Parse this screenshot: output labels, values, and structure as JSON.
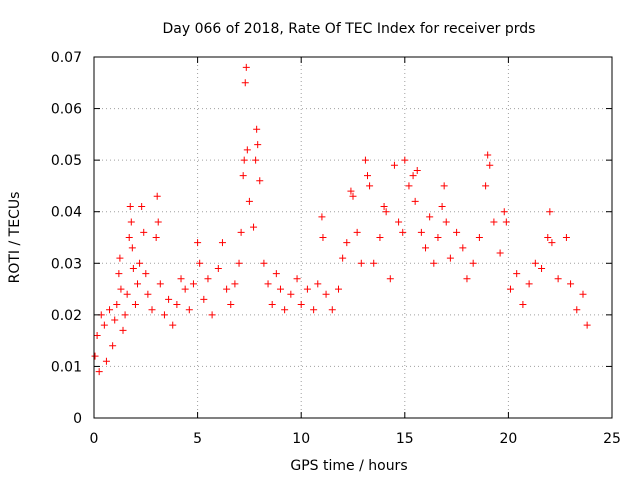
{
  "chart_data": {
    "type": "scatter",
    "title": "Day 066 of 2018, Rate Of TEC Index for receiver prds",
    "xlabel": "GPS time / hours",
    "ylabel": "ROTI / TECUs",
    "xlim": [
      0,
      25
    ],
    "ylim": [
      0,
      0.07
    ],
    "x_ticks": [
      0,
      5,
      10,
      15,
      20,
      25
    ],
    "x_tick_labels": [
      "0",
      "5",
      "10",
      "15",
      "20",
      "25"
    ],
    "y_ticks": [
      0,
      0.01,
      0.02,
      0.03,
      0.04,
      0.05,
      0.06,
      0.07
    ],
    "y_tick_labels": [
      "0",
      "0.01",
      "0.02",
      "0.03",
      "0.04",
      "0.05",
      "0.06",
      "0.07"
    ],
    "grid": true,
    "marker": "+",
    "color": "#ff0000",
    "series": [
      {
        "values": [
          [
            0.05,
            0.012
          ],
          [
            0.15,
            0.016
          ],
          [
            0.25,
            0.009
          ],
          [
            0.35,
            0.02
          ],
          [
            0.5,
            0.018
          ],
          [
            0.6,
            0.011
          ],
          [
            0.75,
            0.021
          ],
          [
            0.9,
            0.014
          ],
          [
            1.0,
            0.019
          ],
          [
            1.1,
            0.022
          ],
          [
            1.2,
            0.028
          ],
          [
            1.25,
            0.031
          ],
          [
            1.3,
            0.025
          ],
          [
            1.4,
            0.017
          ],
          [
            1.5,
            0.02
          ],
          [
            1.6,
            0.024
          ],
          [
            1.7,
            0.035
          ],
          [
            1.75,
            0.041
          ],
          [
            1.8,
            0.038
          ],
          [
            1.85,
            0.033
          ],
          [
            1.9,
            0.029
          ],
          [
            2.0,
            0.022
          ],
          [
            2.1,
            0.026
          ],
          [
            2.2,
            0.03
          ],
          [
            2.3,
            0.041
          ],
          [
            2.4,
            0.036
          ],
          [
            2.5,
            0.028
          ],
          [
            2.6,
            0.024
          ],
          [
            2.8,
            0.021
          ],
          [
            3.0,
            0.035
          ],
          [
            3.05,
            0.043
          ],
          [
            3.1,
            0.038
          ],
          [
            3.2,
            0.026
          ],
          [
            3.4,
            0.02
          ],
          [
            3.6,
            0.023
          ],
          [
            3.8,
            0.018
          ],
          [
            4.0,
            0.022
          ],
          [
            4.2,
            0.027
          ],
          [
            4.4,
            0.025
          ],
          [
            4.6,
            0.021
          ],
          [
            4.8,
            0.026
          ],
          [
            5.0,
            0.034
          ],
          [
            5.1,
            0.03
          ],
          [
            5.3,
            0.023
          ],
          [
            5.5,
            0.027
          ],
          [
            5.7,
            0.02
          ],
          [
            6.0,
            0.029
          ],
          [
            6.2,
            0.034
          ],
          [
            6.4,
            0.025
          ],
          [
            6.6,
            0.022
          ],
          [
            6.8,
            0.026
          ],
          [
            7.0,
            0.03
          ],
          [
            7.1,
            0.036
          ],
          [
            7.2,
            0.047
          ],
          [
            7.25,
            0.05
          ],
          [
            7.3,
            0.065
          ],
          [
            7.35,
            0.068
          ],
          [
            7.4,
            0.052
          ],
          [
            7.5,
            0.042
          ],
          [
            7.7,
            0.037
          ],
          [
            7.8,
            0.05
          ],
          [
            7.85,
            0.056
          ],
          [
            7.9,
            0.053
          ],
          [
            8.0,
            0.046
          ],
          [
            8.2,
            0.03
          ],
          [
            8.4,
            0.026
          ],
          [
            8.6,
            0.022
          ],
          [
            8.8,
            0.028
          ],
          [
            9.0,
            0.025
          ],
          [
            9.2,
            0.021
          ],
          [
            9.5,
            0.024
          ],
          [
            9.8,
            0.027
          ],
          [
            10.0,
            0.022
          ],
          [
            10.3,
            0.025
          ],
          [
            10.6,
            0.021
          ],
          [
            10.8,
            0.026
          ],
          [
            11.0,
            0.039
          ],
          [
            11.05,
            0.035
          ],
          [
            11.2,
            0.024
          ],
          [
            11.5,
            0.021
          ],
          [
            11.8,
            0.025
          ],
          [
            12.0,
            0.031
          ],
          [
            12.2,
            0.034
          ],
          [
            12.4,
            0.044
          ],
          [
            12.5,
            0.043
          ],
          [
            12.7,
            0.036
          ],
          [
            12.9,
            0.03
          ],
          [
            13.1,
            0.05
          ],
          [
            13.2,
            0.047
          ],
          [
            13.3,
            0.045
          ],
          [
            13.5,
            0.03
          ],
          [
            13.8,
            0.035
          ],
          [
            14.0,
            0.041
          ],
          [
            14.1,
            0.04
          ],
          [
            14.3,
            0.027
          ],
          [
            14.5,
            0.049
          ],
          [
            14.7,
            0.038
          ],
          [
            14.9,
            0.036
          ],
          [
            15.0,
            0.05
          ],
          [
            15.2,
            0.045
          ],
          [
            15.4,
            0.047
          ],
          [
            15.5,
            0.042
          ],
          [
            15.6,
            0.048
          ],
          [
            15.8,
            0.036
          ],
          [
            16.0,
            0.033
          ],
          [
            16.2,
            0.039
          ],
          [
            16.4,
            0.03
          ],
          [
            16.6,
            0.035
          ],
          [
            16.8,
            0.041
          ],
          [
            16.9,
            0.045
          ],
          [
            17.0,
            0.038
          ],
          [
            17.2,
            0.031
          ],
          [
            17.5,
            0.036
          ],
          [
            17.8,
            0.033
          ],
          [
            18.0,
            0.027
          ],
          [
            18.3,
            0.03
          ],
          [
            18.6,
            0.035
          ],
          [
            18.9,
            0.045
          ],
          [
            19.0,
            0.051
          ],
          [
            19.1,
            0.049
          ],
          [
            19.3,
            0.038
          ],
          [
            19.6,
            0.032
          ],
          [
            19.8,
            0.04
          ],
          [
            19.9,
            0.038
          ],
          [
            20.1,
            0.025
          ],
          [
            20.4,
            0.028
          ],
          [
            20.7,
            0.022
          ],
          [
            21.0,
            0.026
          ],
          [
            21.3,
            0.03
          ],
          [
            21.6,
            0.029
          ],
          [
            21.9,
            0.035
          ],
          [
            22.0,
            0.04
          ],
          [
            22.1,
            0.034
          ],
          [
            22.4,
            0.027
          ],
          [
            22.8,
            0.035
          ],
          [
            23.0,
            0.026
          ],
          [
            23.3,
            0.021
          ],
          [
            23.6,
            0.024
          ],
          [
            23.8,
            0.018
          ]
        ]
      }
    ]
  }
}
